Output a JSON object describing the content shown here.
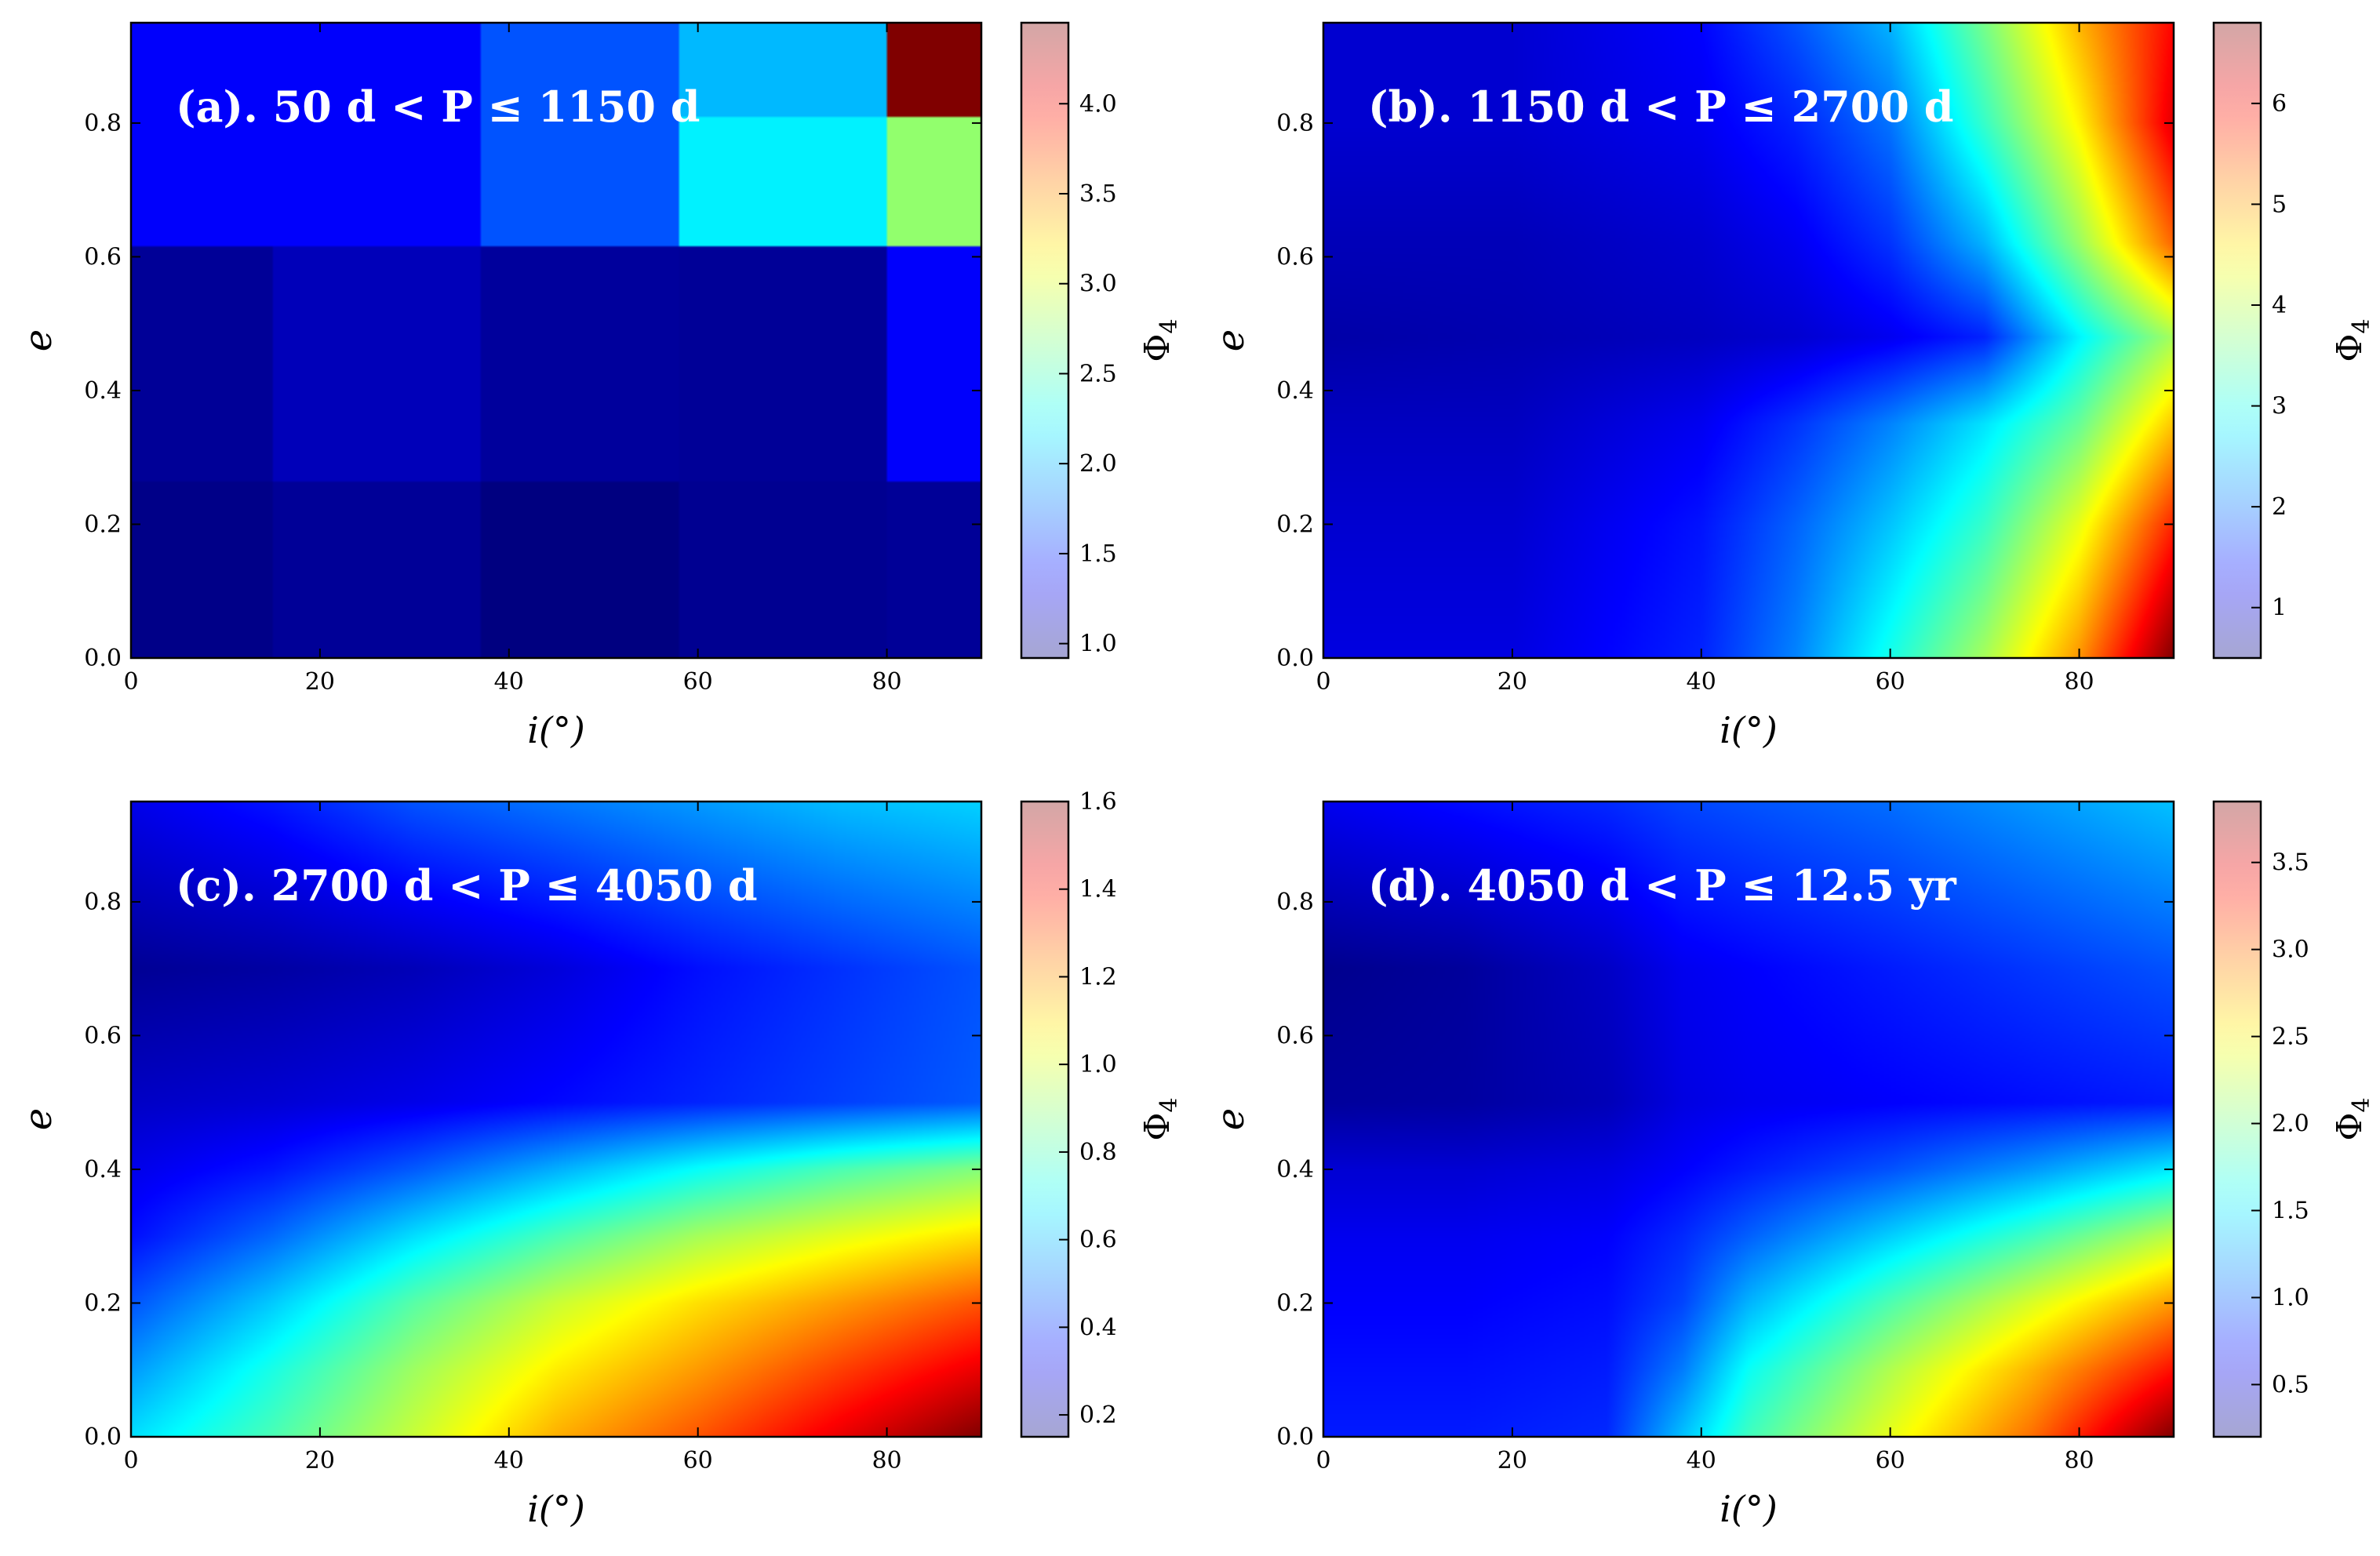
{
  "figure": {
    "colormap": "jet",
    "background": "#ffffff"
  },
  "chart_data": [
    {
      "type": "heatmap",
      "panel": "a",
      "title": "(a). 50 d < P ≤ 1150 d",
      "xlabel": "i(°)",
      "ylabel": "e",
      "colorbar_label": "Φ4",
      "xlim": [
        0,
        90
      ],
      "ylim": [
        0,
        0.95
      ],
      "xticks": [
        0,
        20,
        40,
        60,
        80
      ],
      "yticks": [
        0.0,
        0.2,
        0.4,
        0.6,
        0.8
      ],
      "clim": [
        0.92,
        4.45
      ],
      "cticks": [
        1.0,
        1.5,
        2.0,
        2.5,
        3.0,
        3.5,
        4.0
      ],
      "interpolation": "blocky",
      "x_edges": [
        0,
        15,
        37,
        58,
        80,
        90
      ],
      "y_edges": [
        0,
        0.265,
        0.615,
        0.81,
        0.95
      ],
      "grid_x": [
        7.5,
        26,
        47.5,
        69,
        85
      ],
      "grid_y": [
        0.13,
        0.44,
        0.71,
        0.88
      ],
      "z": [
        [
          0.95,
          1.0,
          0.92,
          0.98,
          1.0
        ],
        [
          1.0,
          1.12,
          1.02,
          1.0,
          1.35
        ],
        [
          1.35,
          1.35,
          1.65,
          2.2,
          2.75
        ],
        [
          1.35,
          1.35,
          1.65,
          2.0,
          4.45
        ]
      ]
    },
    {
      "type": "heatmap",
      "panel": "b",
      "title": "(b). 1150 d < P ≤ 2700 d",
      "xlabel": "i(°)",
      "ylabel": "e",
      "colorbar_label": "Φ4",
      "xlim": [
        0,
        90
      ],
      "ylim": [
        0,
        0.95
      ],
      "xticks": [
        0,
        20,
        40,
        60,
        80
      ],
      "yticks": [
        0.0,
        0.2,
        0.4,
        0.6,
        0.8
      ],
      "clim": [
        0.5,
        6.8
      ],
      "cticks": [
        1,
        2,
        3,
        4,
        5,
        6
      ],
      "interpolation": "smooth",
      "grid_x": [
        0,
        20,
        40,
        50,
        60,
        70,
        80,
        90
      ],
      "grid_y": [
        0,
        0.2,
        0.35,
        0.48,
        0.62,
        0.8,
        0.95
      ],
      "z": [
        [
          1.1,
          1.1,
          1.5,
          2.1,
          3.0,
          3.9,
          5.1,
          6.8
        ],
        [
          1.0,
          1.0,
          1.4,
          1.9,
          2.5,
          3.2,
          4.3,
          5.8
        ],
        [
          0.9,
          0.9,
          1.2,
          1.6,
          2.1,
          2.7,
          3.5,
          4.8
        ],
        [
          0.75,
          0.8,
          0.9,
          1.0,
          1.2,
          1.5,
          2.8,
          3.9
        ],
        [
          0.85,
          0.85,
          1.0,
          1.2,
          1.6,
          2.4,
          3.8,
          5.4
        ],
        [
          1.0,
          1.0,
          1.2,
          1.5,
          2.0,
          3.2,
          4.5,
          6.2
        ],
        [
          1.0,
          1.0,
          1.3,
          1.8,
          2.4,
          3.6,
          4.9,
          6.0
        ]
      ]
    },
    {
      "type": "heatmap",
      "panel": "c",
      "title": "(c). 2700 d < P ≤ 4050 d",
      "xlabel": "i(°)",
      "ylabel": "e",
      "colorbar_label": "Φ4",
      "xlim": [
        0,
        90
      ],
      "ylim": [
        0,
        0.95
      ],
      "xticks": [
        0,
        20,
        40,
        60,
        80
      ],
      "yticks": [
        0.0,
        0.2,
        0.4,
        0.6,
        0.8
      ],
      "clim": [
        0.15,
        1.6
      ],
      "cticks": [
        0.2,
        0.4,
        0.6,
        0.8,
        1.0,
        1.2,
        1.4,
        1.6
      ],
      "interpolation": "smooth",
      "grid_x": [
        0,
        15,
        30,
        45,
        60,
        75,
        90
      ],
      "grid_y": [
        0,
        0.1,
        0.2,
        0.3,
        0.4,
        0.5,
        0.7,
        0.95
      ],
      "z": [
        [
          0.65,
          0.8,
          0.98,
          1.17,
          1.3,
          1.45,
          1.6
        ],
        [
          0.55,
          0.73,
          0.92,
          1.08,
          1.2,
          1.33,
          1.45
        ],
        [
          0.45,
          0.62,
          0.82,
          0.98,
          1.1,
          1.2,
          1.3
        ],
        [
          0.35,
          0.48,
          0.65,
          0.8,
          0.93,
          1.02,
          1.1
        ],
        [
          0.3,
          0.36,
          0.46,
          0.58,
          0.7,
          0.8,
          0.88
        ],
        [
          0.25,
          0.27,
          0.3,
          0.34,
          0.38,
          0.42,
          0.46
        ],
        [
          0.18,
          0.2,
          0.23,
          0.28,
          0.35,
          0.4,
          0.45
        ],
        [
          0.3,
          0.36,
          0.45,
          0.5,
          0.55,
          0.6,
          0.63
        ]
      ]
    },
    {
      "type": "heatmap",
      "panel": "d",
      "title": "(d). 4050 d < P ≤ 12.5 yr",
      "xlabel": "i(°)",
      "ylabel": "e",
      "colorbar_label": "Φ4",
      "xlim": [
        0,
        90
      ],
      "ylim": [
        0,
        0.95
      ],
      "xticks": [
        0,
        20,
        40,
        60,
        80
      ],
      "yticks": [
        0.0,
        0.2,
        0.4,
        0.6,
        0.8
      ],
      "clim": [
        0.2,
        3.85
      ],
      "cticks": [
        0.5,
        1.0,
        1.5,
        2.0,
        2.5,
        3.0,
        3.5
      ],
      "interpolation": "smooth",
      "grid_x": [
        0,
        15,
        30,
        38,
        45,
        60,
        75,
        90
      ],
      "grid_y": [
        0,
        0.1,
        0.2,
        0.3,
        0.4,
        0.5,
        0.7,
        0.95
      ],
      "z": [
        [
          0.75,
          0.75,
          0.8,
          1.35,
          1.8,
          2.4,
          3.0,
          3.85
        ],
        [
          0.7,
          0.7,
          0.75,
          1.1,
          1.6,
          2.2,
          2.75,
          3.35
        ],
        [
          0.65,
          0.65,
          0.7,
          0.9,
          1.3,
          1.85,
          2.35,
          2.85
        ],
        [
          0.6,
          0.6,
          0.65,
          0.8,
          1.0,
          1.4,
          1.8,
          2.25
        ],
        [
          0.5,
          0.5,
          0.55,
          0.65,
          0.75,
          0.95,
          1.2,
          1.5
        ],
        [
          0.3,
          0.32,
          0.4,
          0.55,
          0.6,
          0.65,
          0.7,
          0.75
        ],
        [
          0.25,
          0.3,
          0.45,
          0.6,
          0.65,
          0.75,
          0.85,
          0.95
        ],
        [
          0.6,
          0.7,
          0.8,
          0.9,
          0.95,
          1.05,
          1.2,
          1.35
        ]
      ]
    }
  ]
}
